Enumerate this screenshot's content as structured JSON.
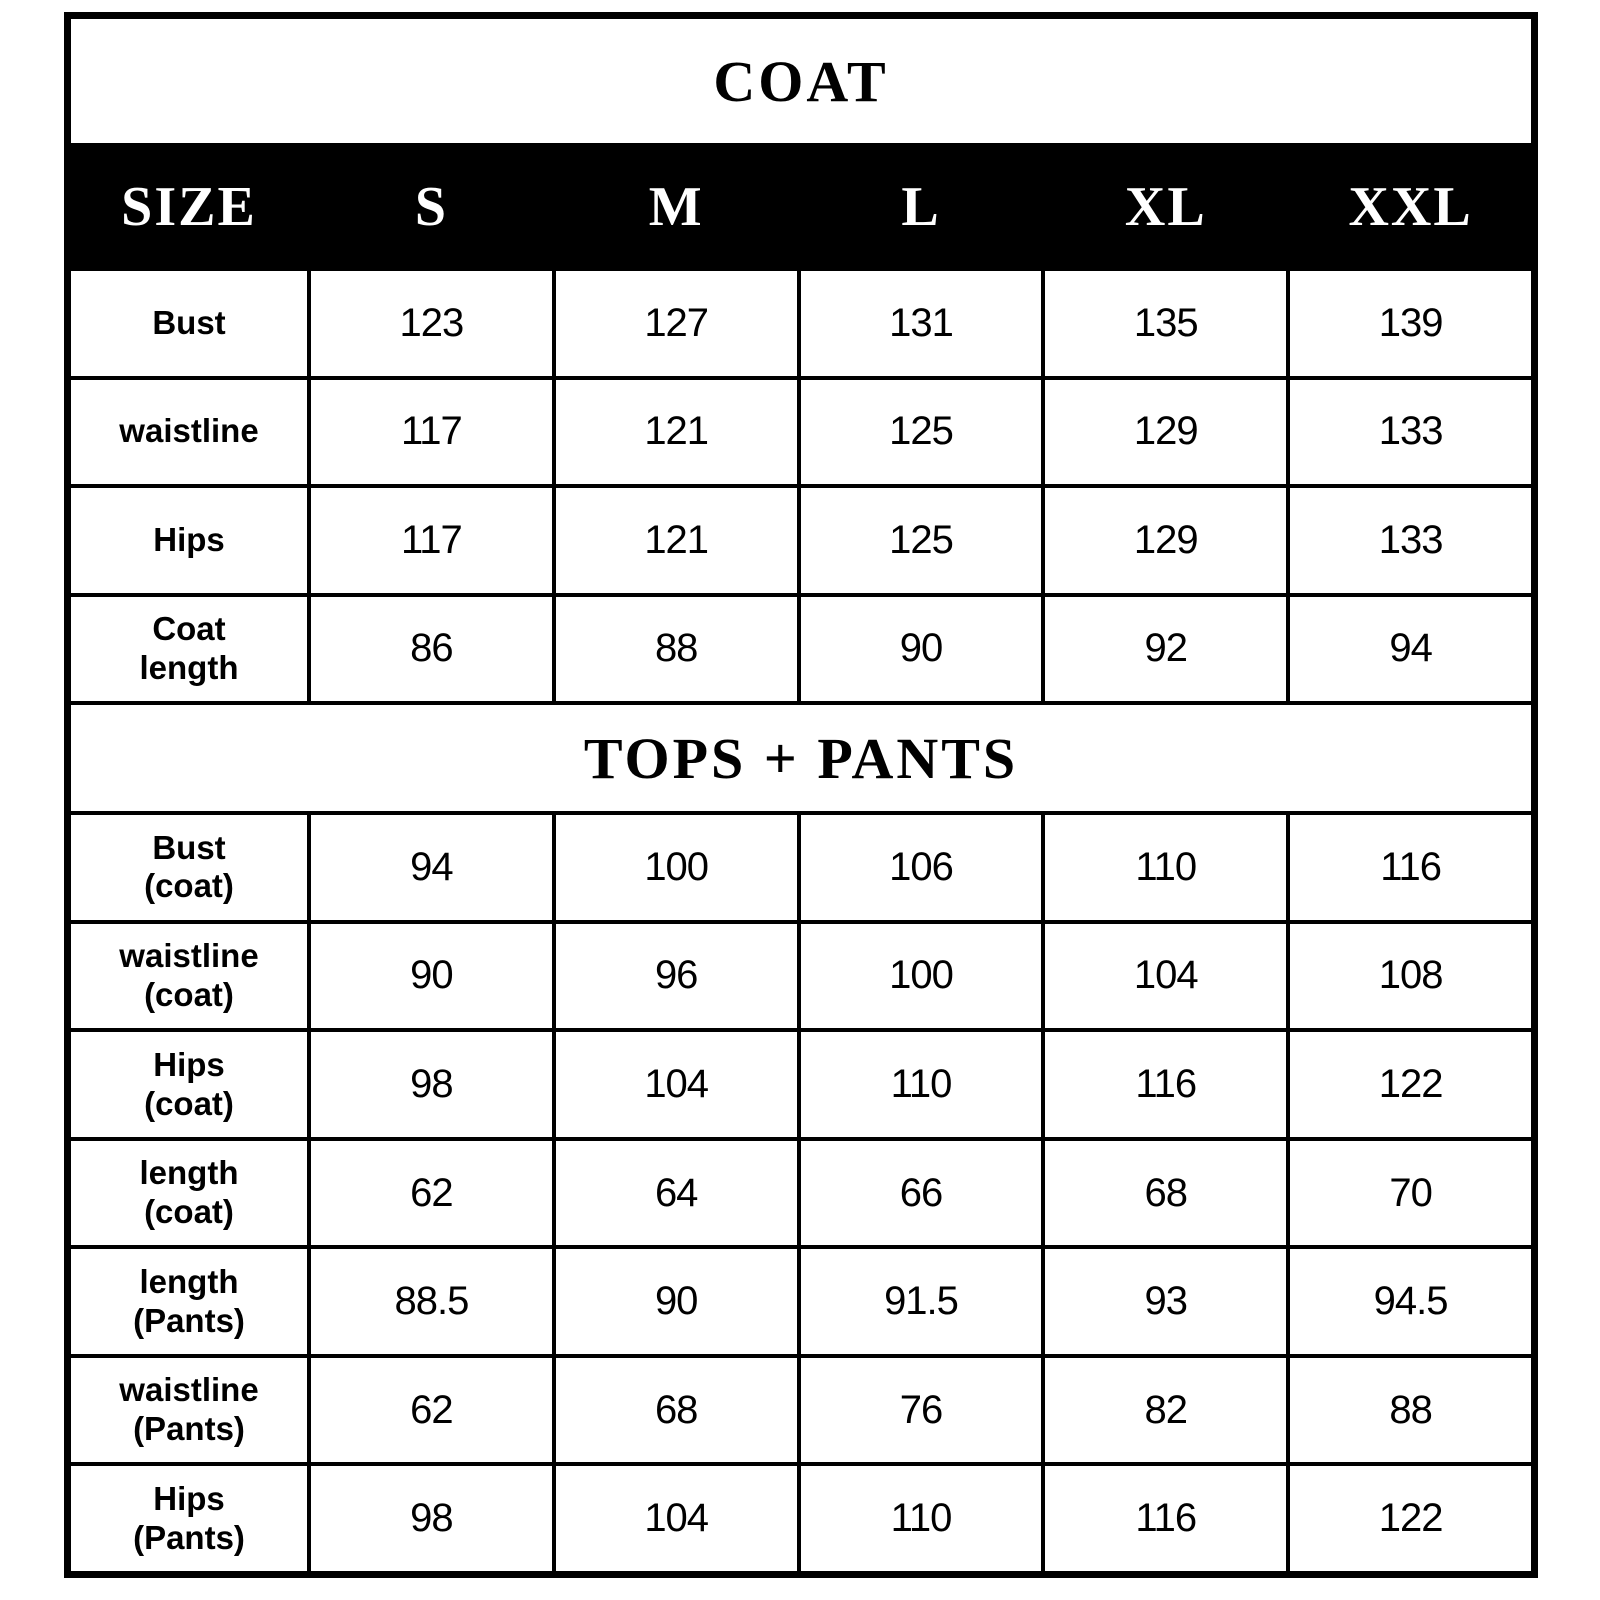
{
  "colors": {
    "border": "#000000",
    "header_bg": "#000000",
    "header_text": "#ffffff",
    "cell_bg": "#ffffff",
    "text": "#000000"
  },
  "chart_data": {
    "type": "table",
    "title_coat": "COAT",
    "title_tops_pants": "TOPS + PANTS",
    "header": {
      "size_label": "SIZE",
      "size_columns": [
        "S",
        "M",
        "L",
        "XL",
        "XXL"
      ]
    },
    "coat_rows": [
      {
        "label": "Bust",
        "values": [
          "123",
          "127",
          "131",
          "135",
          "139"
        ]
      },
      {
        "label": "waistline",
        "values": [
          "117",
          "121",
          "125",
          "129",
          "133"
        ]
      },
      {
        "label": "Hips",
        "values": [
          "117",
          "121",
          "125",
          "129",
          "133"
        ]
      },
      {
        "label": "Coat\nlength",
        "values": [
          "86",
          "88",
          "90",
          "92",
          "94"
        ]
      }
    ],
    "tops_pants_rows": [
      {
        "label": "Bust\n(coat)",
        "values": [
          "94",
          "100",
          "106",
          "110",
          "116"
        ]
      },
      {
        "label": "waistline\n(coat)",
        "values": [
          "90",
          "96",
          "100",
          "104",
          "108"
        ]
      },
      {
        "label": "Hips\n(coat)",
        "values": [
          "98",
          "104",
          "110",
          "116",
          "122"
        ]
      },
      {
        "label": "length\n(coat)",
        "values": [
          "62",
          "64",
          "66",
          "68",
          "70"
        ]
      },
      {
        "label": "length\n(Pants)",
        "values": [
          "88.5",
          "90",
          "91.5",
          "93",
          "94.5"
        ]
      },
      {
        "label": "waistline\n(Pants)",
        "values": [
          "62",
          "68",
          "76",
          "82",
          "88"
        ]
      },
      {
        "label": "Hips\n(Pants)",
        "values": [
          "98",
          "104",
          "110",
          "116",
          "122"
        ]
      }
    ]
  }
}
